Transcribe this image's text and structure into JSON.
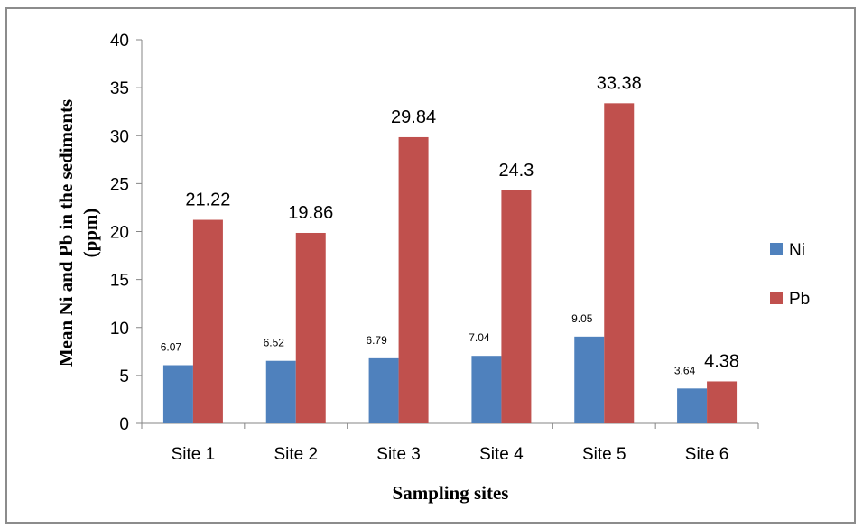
{
  "chart_data": {
    "type": "bar",
    "categories": [
      "Site 1",
      "Site 2",
      "Site 3",
      "Site 4",
      "Site 5",
      "Site 6"
    ],
    "series": [
      {
        "name": "Ni",
        "color": "#4f81bd",
        "values": [
          6.07,
          6.52,
          6.79,
          7.04,
          9.05,
          3.64
        ]
      },
      {
        "name": "Pb",
        "color": "#c0504d",
        "values": [
          21.22,
          19.86,
          29.84,
          24.3,
          33.38,
          4.38
        ]
      }
    ],
    "xlabel": "Sampling sites",
    "ylabel_line1": "Mean Ni and Pb in the sediments",
    "ylabel_line2": "(ppm)",
    "ylim": [
      0,
      40
    ],
    "yticks": [
      0,
      5,
      10,
      15,
      20,
      25,
      30,
      35,
      40
    ],
    "grid": false,
    "legend_position": "right"
  }
}
